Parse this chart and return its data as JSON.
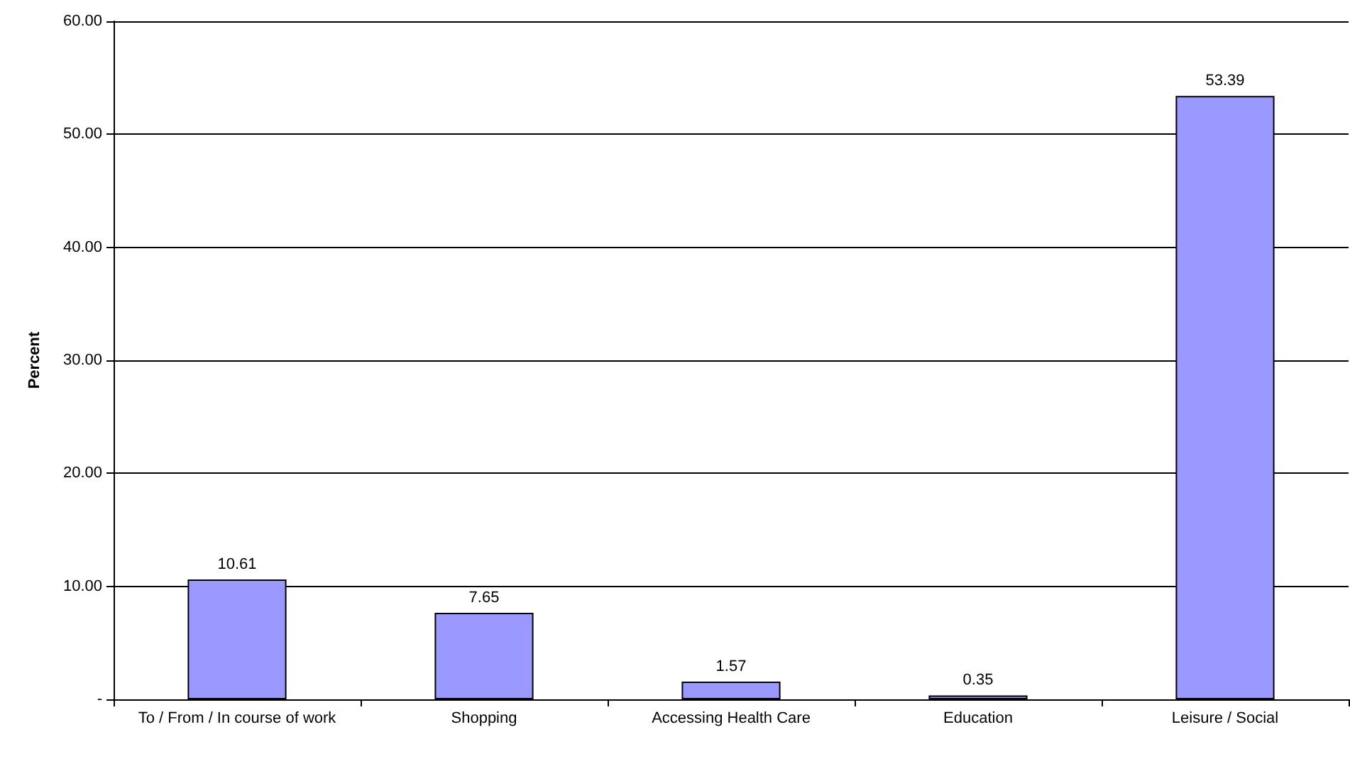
{
  "chart_data": {
    "type": "bar",
    "ylabel": "Percent",
    "categories": [
      "To / From / In course of work",
      "Shopping",
      "Accessing Health Care",
      "Education",
      "Leisure / Social"
    ],
    "values": [
      10.61,
      7.65,
      1.57,
      0.35,
      53.39
    ],
    "color": "#9999ff",
    "ylim": [
      0,
      60
    ],
    "yticks": [
      {
        "value": 0,
        "label": "-"
      },
      {
        "value": 10,
        "label": "10.00"
      },
      {
        "value": 20,
        "label": "20.00"
      },
      {
        "value": 30,
        "label": "30.00"
      },
      {
        "value": 40,
        "label": "40.00"
      },
      {
        "value": 50,
        "label": "50.00"
      },
      {
        "value": 60,
        "label": "60.00"
      }
    ],
    "grid": "y",
    "data_labels": true
  }
}
